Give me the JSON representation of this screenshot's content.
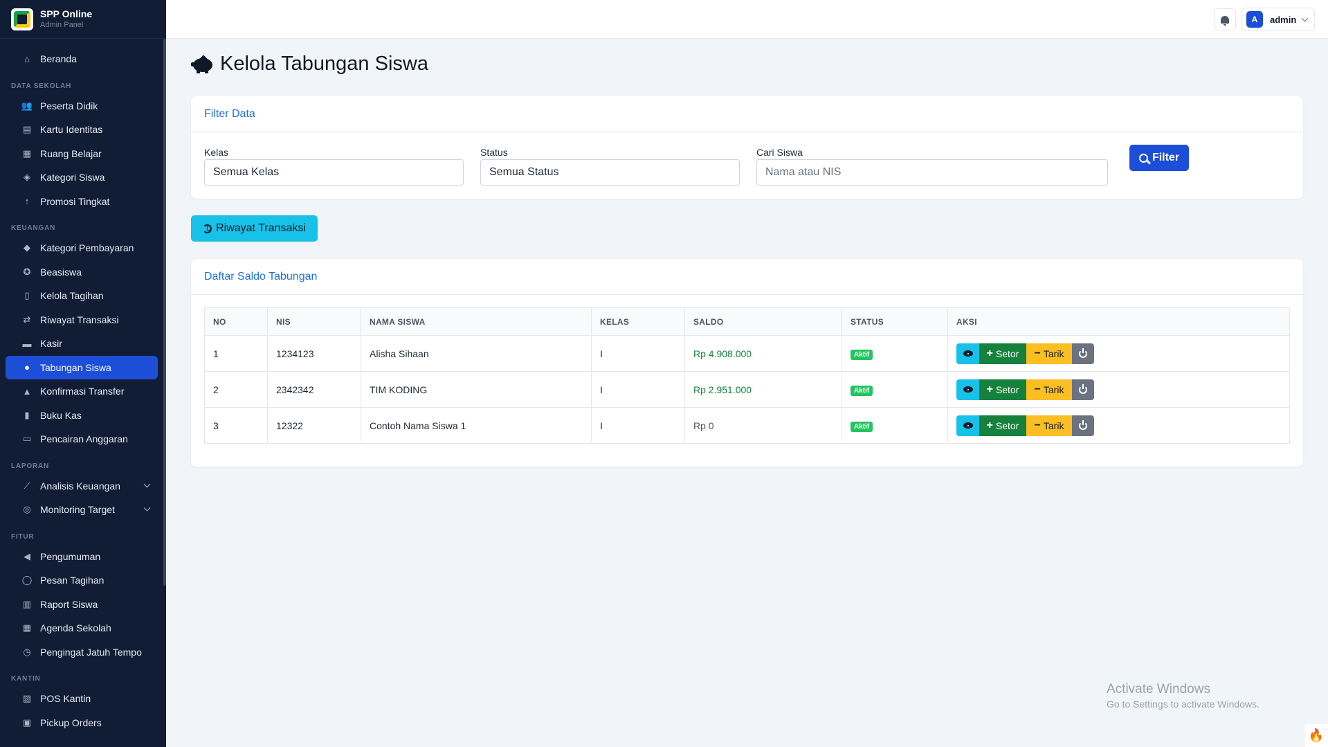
{
  "brand": {
    "title": "SPP Online",
    "subtitle": "Admin Panel"
  },
  "sidebar": {
    "home": {
      "label": "Beranda",
      "icon": "home-icon"
    },
    "sections": [
      {
        "title": "DATA SEKOLAH",
        "items": [
          {
            "label": "Peserta Didik",
            "icon": "users-icon"
          },
          {
            "label": "Kartu Identitas",
            "icon": "id-card-icon"
          },
          {
            "label": "Ruang Belajar",
            "icon": "school-icon"
          },
          {
            "label": "Kategori Siswa",
            "icon": "layers-icon"
          },
          {
            "label": "Promosi Tingkat",
            "icon": "arrow-up-icon"
          }
        ]
      },
      {
        "title": "KEUANGAN",
        "items": [
          {
            "label": "Kategori Pembayaran",
            "icon": "tags-icon"
          },
          {
            "label": "Beasiswa",
            "icon": "award-icon"
          },
          {
            "label": "Kelola Tagihan",
            "icon": "file-invoice-icon"
          },
          {
            "label": "Riwayat Transaksi",
            "icon": "exchange-icon"
          },
          {
            "label": "Kasir",
            "icon": "cash-register-icon"
          },
          {
            "label": "Tabungan Siswa",
            "icon": "piggy-bank-icon",
            "active": true
          },
          {
            "label": "Konfirmasi Transfer",
            "icon": "bell-icon"
          },
          {
            "label": "Buku Kas",
            "icon": "book-icon"
          },
          {
            "label": "Pencairan Anggaran",
            "icon": "money-icon"
          }
        ]
      },
      {
        "title": "LAPORAN",
        "items": [
          {
            "label": "Analisis Keuangan",
            "icon": "chart-line-icon",
            "expandable": true
          },
          {
            "label": "Monitoring Target",
            "icon": "target-icon",
            "expandable": true
          }
        ]
      },
      {
        "title": "FITUR",
        "items": [
          {
            "label": "Pengumuman",
            "icon": "megaphone-icon"
          },
          {
            "label": "Pesan Tagihan",
            "icon": "whatsapp-icon"
          },
          {
            "label": "Raport Siswa",
            "icon": "book-open-icon"
          },
          {
            "label": "Agenda Sekolah",
            "icon": "calendar-icon"
          },
          {
            "label": "Pengingat Jatuh Tempo",
            "icon": "clock-icon"
          }
        ]
      },
      {
        "title": "KANTIN",
        "items": [
          {
            "label": "POS Kantin",
            "icon": "store-icon"
          },
          {
            "label": "Pickup Orders",
            "icon": "bag-icon"
          }
        ]
      }
    ]
  },
  "topbar": {
    "user_initial": "A",
    "user_name": "admin"
  },
  "page": {
    "title": "Kelola Tabungan Siswa",
    "filter": {
      "heading": "Filter Data",
      "kelas_label": "Kelas",
      "kelas_value": "Semua Kelas",
      "status_label": "Status",
      "status_value": "Semua Status",
      "search_label": "Cari Siswa",
      "search_placeholder": "Nama atau NIS",
      "button": "Filter"
    },
    "history_button": "Riwayat Transaksi",
    "list": {
      "heading": "Daftar Saldo Tabungan",
      "columns": [
        "NO",
        "NIS",
        "NAMA SISWA",
        "KELAS",
        "SALDO",
        "STATUS",
        "AKSI"
      ],
      "rows": [
        {
          "no": "1",
          "nis": "1234123",
          "nama": "Alisha Sihaan",
          "kelas": "I",
          "saldo": "Rp 4.908.000",
          "status": "Aktif"
        },
        {
          "no": "2",
          "nis": "2342342",
          "nama": "TIM KODING",
          "kelas": "I",
          "saldo": "Rp 2.951.000",
          "status": "Aktif"
        },
        {
          "no": "3",
          "nis": "12322",
          "nama": "Contoh Nama Siswa 1",
          "kelas": "I",
          "saldo": "Rp 0",
          "status": "Aktif"
        }
      ],
      "action_setor": "Setor",
      "action_tarik": "Tarik"
    }
  },
  "watermark": {
    "line1": "Activate Windows",
    "line2": "Go to Settings to activate Windows."
  },
  "colors": {
    "sidebar_bg": "#111d34",
    "primary": "#1d4ed8",
    "info": "#17c1e8",
    "success": "#16803d",
    "warning": "#fbbf24"
  }
}
